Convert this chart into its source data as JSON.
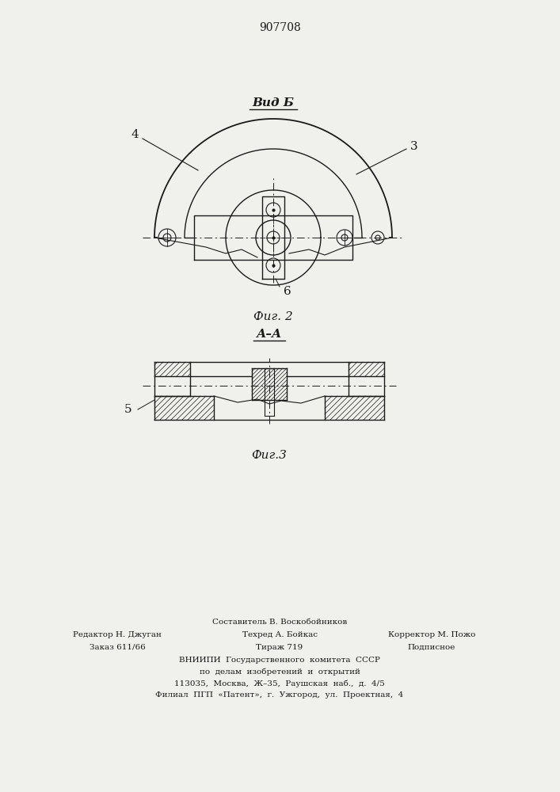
{
  "patent_number": "907708",
  "title_fig2": "Вид Б",
  "title_fig3": "А–А",
  "caption_fig2": "Фиг. 2",
  "caption_fig3": "Фиг.3",
  "label_3": "3",
  "label_4": "4",
  "label_5": "5",
  "label_6": "6",
  "footer_line1": "Составитель В. Воскобойников",
  "footer_line2_col1": "Редактор Н. Джуган",
  "footer_line2_col2": "Техред А. Бойкас",
  "footer_line2_col3": "Корректор М. Пожо",
  "footer_line3_col1": "Заказ 611/66",
  "footer_line3_col2": "Тираж 719",
  "footer_line3_col3": "Подписное",
  "footer_line4": "ВНИИПИ  Государственного  комитета  СССР",
  "footer_line5": "по  делам  изобретений  и  открытий",
  "footer_line6": "113035,  Москва,  Ж–35,  Раушская  наб.,  д.  4/5",
  "footer_line7": "Филиал  ПГП  «Патент»,  г.  Ужгород,  ул.  Проектная,  4",
  "bg_color": "#f0f0ec",
  "line_color": "#1a1a1a"
}
